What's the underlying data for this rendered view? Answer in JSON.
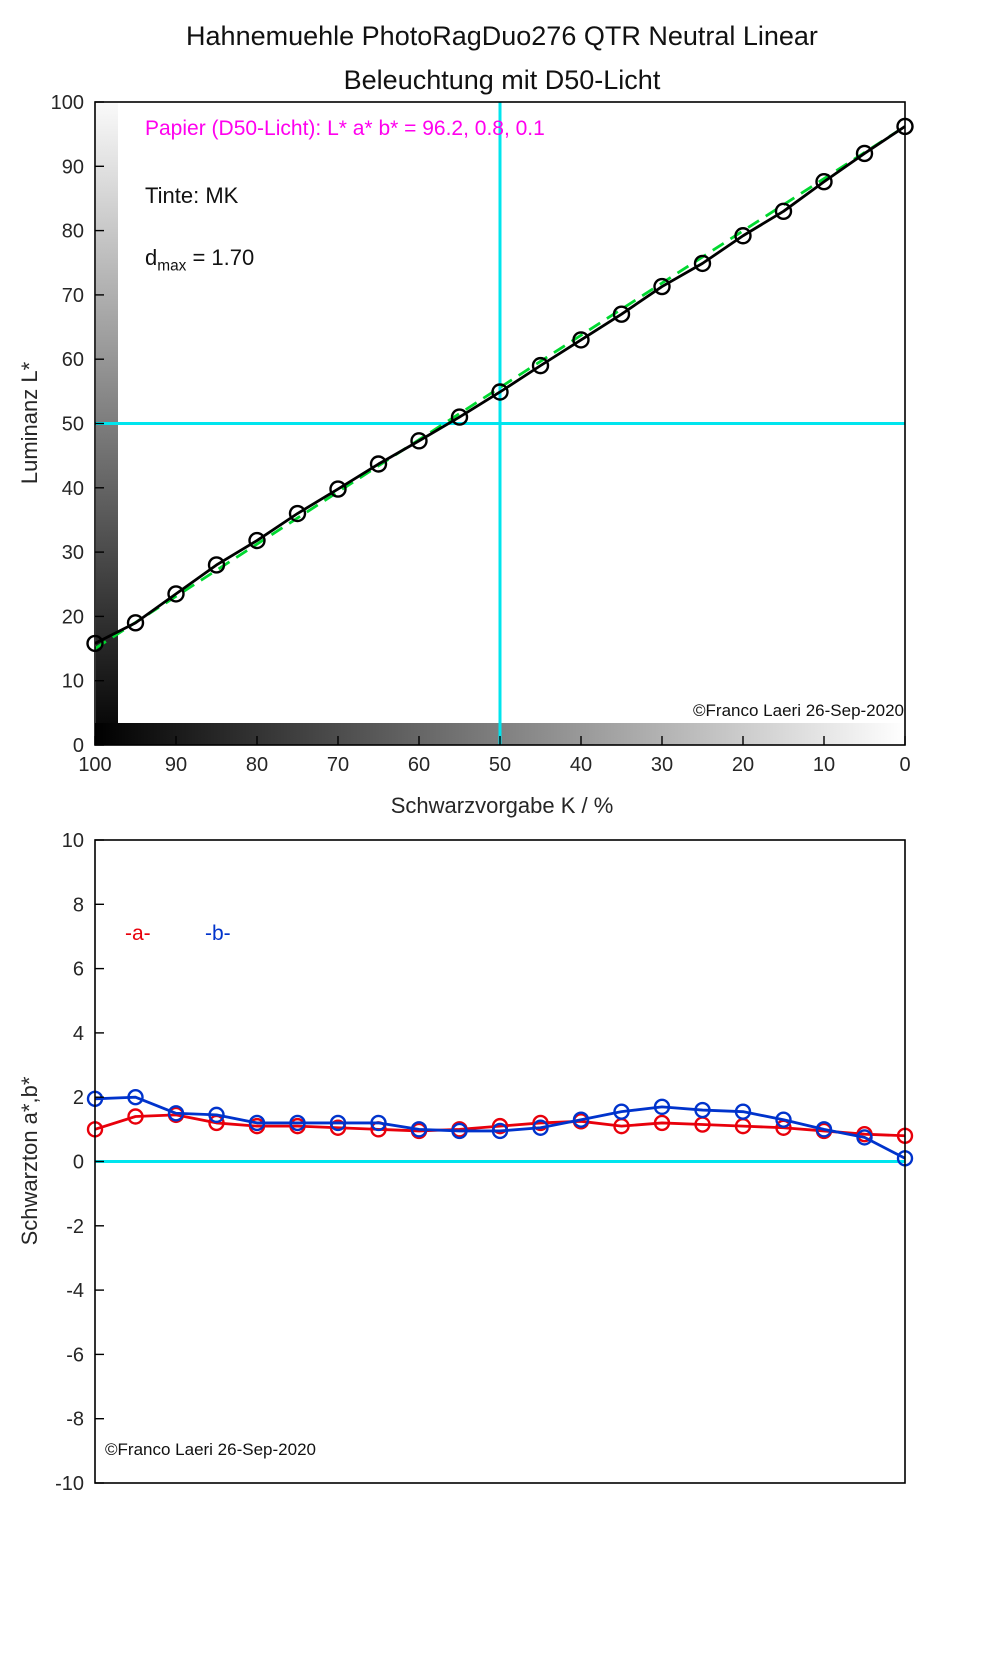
{
  "page": {
    "title_line1": "Hahnemuehle PhotoRagDuo276 QTR Neutral Linear",
    "title_line2": "Beleuchtung mit D50-Licht"
  },
  "colors": {
    "measured_black": "#000000",
    "ideal_green": "#00d830",
    "crosshair_cyan": "#00e5ee",
    "a_red": "#e8000b",
    "b_blue": "#0033cc",
    "paper_magenta": "#ff00ee"
  },
  "chart_data": [
    {
      "type": "line",
      "title": "Hahnemuehle PhotoRagDuo276 QTR Neutral Linear — Beleuchtung mit D50-Licht",
      "xlabel": "Schwarzvorgabe  K / %",
      "ylabel": "Luminanz  L*",
      "xlim": [
        100,
        0
      ],
      "ylim": [
        0,
        100
      ],
      "xticks": [
        100,
        90,
        80,
        70,
        60,
        50,
        40,
        30,
        20,
        10,
        0
      ],
      "yticks": [
        0,
        10,
        20,
        30,
        40,
        50,
        60,
        70,
        80,
        90,
        100
      ],
      "grid": false,
      "gradient_strips": true,
      "x": [
        100,
        95,
        90,
        85,
        80,
        75,
        70,
        65,
        60,
        55,
        50,
        45,
        40,
        35,
        30,
        25,
        20,
        15,
        10,
        5,
        0
      ],
      "series": [
        {
          "name": "ideal-linear",
          "color": "#00d830",
          "dashed": true,
          "marker": false,
          "x": [
            100,
            0
          ],
          "values": [
            15.0,
            96.2
          ]
        },
        {
          "name": "measured-luminance",
          "color": "#000000",
          "dashed": false,
          "marker": "circle",
          "values": [
            15.8,
            19.0,
            23.5,
            28.0,
            31.8,
            36.0,
            39.8,
            43.7,
            47.3,
            51.0,
            54.9,
            59.0,
            63.0,
            67.0,
            71.3,
            74.9,
            79.2,
            83.0,
            87.6,
            92.0,
            96.2
          ]
        }
      ],
      "crosshair": {
        "x": 50,
        "y": 50,
        "color": "#00e5ee"
      },
      "annotations": {
        "paper": "Papier (D50-Licht): L* a* b* =  96.2, 0.8, 0.1",
        "ink": "Tinte:  MK",
        "dmax_base": "d",
        "dmax_sub": "max",
        "dmax_value": " =  1.70",
        "copyright": "©Franco Laeri  26-Sep-2020"
      }
    },
    {
      "type": "line",
      "title": "",
      "xlabel": "",
      "ylabel": "Schwarzton a*,b*",
      "xlim": [
        100,
        0
      ],
      "ylim": [
        -10,
        10
      ],
      "xticks": [],
      "yticks": [
        -10,
        -8,
        -6,
        -4,
        -2,
        0,
        2,
        4,
        6,
        8,
        10
      ],
      "grid": false,
      "x": [
        100,
        95,
        90,
        85,
        80,
        75,
        70,
        65,
        60,
        55,
        50,
        45,
        40,
        35,
        30,
        25,
        20,
        15,
        10,
        5,
        0
      ],
      "series": [
        {
          "name": "a-star",
          "color": "#e8000b",
          "dashed": false,
          "marker": "circle",
          "values": [
            1.0,
            1.4,
            1.45,
            1.2,
            1.1,
            1.1,
            1.05,
            1.0,
            0.95,
            1.0,
            1.1,
            1.2,
            1.25,
            1.1,
            1.2,
            1.15,
            1.1,
            1.05,
            0.95,
            0.85,
            0.8
          ]
        },
        {
          "name": "b-star",
          "color": "#0033cc",
          "dashed": false,
          "marker": "circle",
          "values": [
            1.95,
            2.0,
            1.5,
            1.45,
            1.2,
            1.2,
            1.2,
            1.2,
            1.0,
            0.95,
            0.95,
            1.05,
            1.3,
            1.55,
            1.7,
            1.6,
            1.55,
            1.3,
            1.0,
            0.75,
            0.1
          ]
        }
      ],
      "zero_line": {
        "y": 0,
        "color": "#00e5ee"
      },
      "annotations": {
        "legend_a": "-a-",
        "legend_b": "-b-",
        "copyright": "©Franco Laeri  26-Sep-2020"
      }
    }
  ]
}
